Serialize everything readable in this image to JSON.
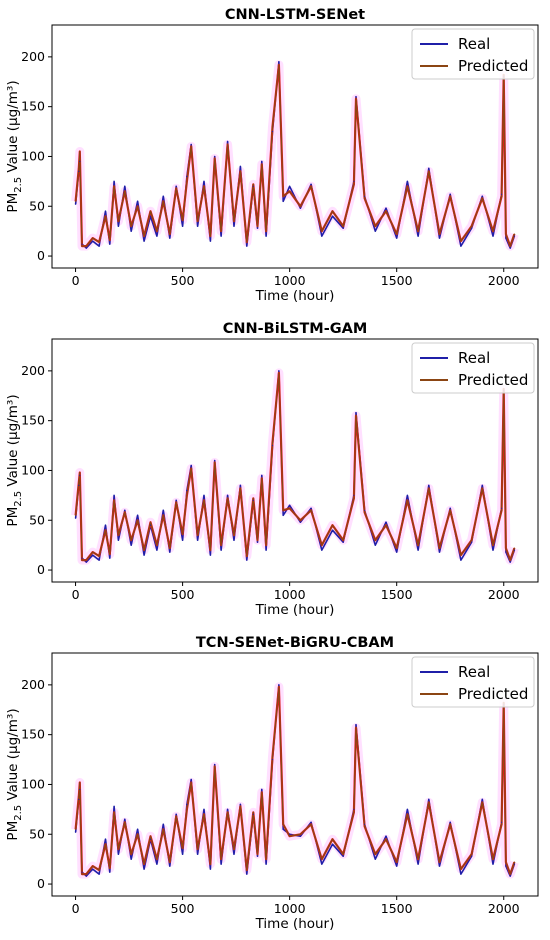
{
  "colors": {
    "real": "#1f1fa8",
    "predicted": "#8b4513",
    "error": "#e8191e",
    "halo": "#ff00ff"
  },
  "chart_data": [
    {
      "type": "line",
      "title": "CNN-LSTM-SENet",
      "xlabel": "Time (hour)",
      "ylabel": "PM2.5 Value (μg/m³)",
      "xlim": [
        -110,
        2160
      ],
      "ylim": [
        -12,
        232
      ],
      "xticks": [
        0,
        500,
        1000,
        1500,
        2000
      ],
      "yticks": [
        0,
        50,
        100,
        150,
        200
      ],
      "grid": false,
      "legend": "top-right",
      "series": [
        {
          "name": "Real",
          "x": [
            0,
            15,
            20,
            30,
            50,
            80,
            110,
            140,
            160,
            180,
            200,
            230,
            260,
            290,
            320,
            350,
            380,
            410,
            440,
            470,
            500,
            520,
            540,
            570,
            600,
            630,
            650,
            680,
            710,
            740,
            770,
            800,
            830,
            850,
            870,
            890,
            920,
            950,
            970,
            1000,
            1050,
            1100,
            1150,
            1200,
            1250,
            1300,
            1310,
            1350,
            1400,
            1450,
            1500,
            1550,
            1600,
            1650,
            1700,
            1750,
            1800,
            1850,
            1900,
            1950,
            1990,
            2000,
            2010,
            2030,
            2050
          ],
          "values": [
            52,
            85,
            95,
            12,
            8,
            15,
            10,
            45,
            12,
            75,
            30,
            70,
            25,
            55,
            15,
            40,
            20,
            60,
            18,
            70,
            30,
            80,
            112,
            30,
            75,
            15,
            100,
            20,
            115,
            30,
            90,
            10,
            70,
            28,
            95,
            20,
            125,
            195,
            55,
            70,
            48,
            72,
            20,
            40,
            28,
            75,
            160,
            60,
            25,
            48,
            18,
            75,
            20,
            88,
            18,
            62,
            10,
            28,
            60,
            20,
            62,
            180,
            18,
            8,
            20
          ]
        },
        {
          "name": "Predicted",
          "x": [
            0,
            15,
            20,
            30,
            50,
            80,
            110,
            140,
            160,
            180,
            200,
            230,
            260,
            290,
            320,
            350,
            380,
            410,
            440,
            470,
            500,
            520,
            540,
            570,
            600,
            630,
            650,
            680,
            710,
            740,
            770,
            800,
            830,
            850,
            870,
            890,
            920,
            950,
            970,
            1000,
            1050,
            1100,
            1150,
            1200,
            1250,
            1300,
            1310,
            1350,
            1400,
            1450,
            1500,
            1550,
            1600,
            1650,
            1700,
            1750,
            1800,
            1850,
            1900,
            1950,
            1990,
            2000,
            2010,
            2030,
            2050
          ],
          "values": [
            55,
            88,
            105,
            10,
            10,
            18,
            14,
            40,
            16,
            70,
            35,
            65,
            30,
            50,
            20,
            45,
            25,
            55,
            22,
            68,
            36,
            75,
            110,
            35,
            70,
            20,
            98,
            25,
            112,
            35,
            85,
            14,
            72,
            30,
            92,
            25,
            130,
            192,
            60,
            65,
            50,
            70,
            25,
            45,
            30,
            72,
            158,
            58,
            30,
            45,
            22,
            70,
            25,
            85,
            22,
            60,
            15,
            30,
            58,
            25,
            60,
            182,
            22,
            10,
            22
          ]
        }
      ]
    },
    {
      "type": "line",
      "title": "CNN-BiLSTM-GAM",
      "xlabel": "Time (hour)",
      "ylabel": "PM2.5 Value (μg/m³)",
      "xlim": [
        -110,
        2160
      ],
      "ylim": [
        -12,
        232
      ],
      "xticks": [
        0,
        500,
        1000,
        1500,
        2000
      ],
      "yticks": [
        0,
        50,
        100,
        150,
        200
      ],
      "grid": false,
      "legend": "top-right",
      "series": [
        {
          "name": "Real",
          "x": [
            0,
            15,
            20,
            30,
            50,
            80,
            110,
            140,
            160,
            180,
            200,
            230,
            260,
            290,
            320,
            350,
            380,
            410,
            440,
            470,
            500,
            520,
            540,
            570,
            600,
            630,
            650,
            680,
            710,
            740,
            770,
            800,
            830,
            850,
            870,
            890,
            920,
            950,
            970,
            1000,
            1050,
            1100,
            1150,
            1200,
            1250,
            1300,
            1310,
            1350,
            1400,
            1450,
            1500,
            1550,
            1600,
            1650,
            1700,
            1750,
            1800,
            1850,
            1900,
            1950,
            1990,
            2000,
            2010,
            2030,
            2050
          ],
          "values": [
            52,
            85,
            95,
            12,
            8,
            15,
            10,
            45,
            12,
            75,
            30,
            60,
            25,
            55,
            15,
            45,
            20,
            60,
            18,
            70,
            30,
            80,
            105,
            30,
            75,
            15,
            110,
            20,
            75,
            30,
            85,
            10,
            70,
            28,
            95,
            20,
            125,
            200,
            55,
            65,
            48,
            62,
            20,
            40,
            28,
            75,
            158,
            60,
            25,
            48,
            18,
            75,
            20,
            85,
            18,
            62,
            10,
            28,
            85,
            20,
            62,
            180,
            18,
            8,
            20
          ]
        },
        {
          "name": "Predicted",
          "x": [
            0,
            15,
            20,
            30,
            50,
            80,
            110,
            140,
            160,
            180,
            200,
            230,
            260,
            290,
            320,
            350,
            380,
            410,
            440,
            470,
            500,
            520,
            540,
            570,
            600,
            630,
            650,
            680,
            710,
            740,
            770,
            800,
            830,
            850,
            870,
            890,
            920,
            950,
            970,
            1000,
            1050,
            1100,
            1150,
            1200,
            1250,
            1300,
            1310,
            1350,
            1400,
            1450,
            1500,
            1550,
            1600,
            1650,
            1700,
            1750,
            1800,
            1850,
            1900,
            1950,
            1990,
            2000,
            2010,
            2030,
            2050
          ],
          "values": [
            55,
            88,
            98,
            10,
            10,
            18,
            14,
            40,
            16,
            70,
            35,
            58,
            30,
            50,
            20,
            48,
            25,
            55,
            22,
            68,
            36,
            75,
            102,
            35,
            70,
            20,
            108,
            25,
            72,
            35,
            82,
            14,
            72,
            30,
            92,
            25,
            128,
            198,
            60,
            62,
            50,
            60,
            25,
            45,
            30,
            72,
            155,
            58,
            30,
            45,
            22,
            70,
            25,
            82,
            22,
            60,
            15,
            30,
            82,
            25,
            60,
            182,
            22,
            10,
            22
          ]
        }
      ]
    },
    {
      "type": "line",
      "title": "TCN-SENet-BiGRU-CBAM",
      "xlabel": "Time (hour)",
      "ylabel": "PM2.5 Value (μg/m³)",
      "xlim": [
        -110,
        2160
      ],
      "ylim": [
        -12,
        232
      ],
      "xticks": [
        0,
        500,
        1000,
        1500,
        2000
      ],
      "yticks": [
        0,
        50,
        100,
        150,
        200
      ],
      "grid": false,
      "legend": "top-right",
      "series": [
        {
          "name": "Real",
          "x": [
            0,
            15,
            20,
            30,
            50,
            80,
            110,
            140,
            160,
            180,
            200,
            230,
            260,
            290,
            320,
            350,
            380,
            410,
            440,
            470,
            500,
            520,
            540,
            570,
            600,
            630,
            650,
            680,
            710,
            740,
            770,
            800,
            830,
            850,
            870,
            890,
            920,
            950,
            970,
            1000,
            1050,
            1100,
            1150,
            1200,
            1250,
            1300,
            1310,
            1350,
            1400,
            1450,
            1500,
            1550,
            1600,
            1650,
            1700,
            1750,
            1800,
            1850,
            1900,
            1950,
            1990,
            2000,
            2010,
            2030,
            2050
          ],
          "values": [
            52,
            85,
            95,
            12,
            8,
            15,
            10,
            45,
            12,
            78,
            30,
            65,
            25,
            55,
            15,
            45,
            20,
            60,
            18,
            70,
            30,
            80,
            105,
            30,
            75,
            15,
            120,
            20,
            75,
            30,
            80,
            10,
            70,
            28,
            95,
            20,
            125,
            200,
            55,
            50,
            48,
            62,
            20,
            40,
            28,
            75,
            160,
            60,
            25,
            48,
            18,
            75,
            20,
            85,
            18,
            62,
            10,
            28,
            85,
            20,
            62,
            180,
            18,
            8,
            20
          ]
        },
        {
          "name": "Predicted",
          "x": [
            0,
            15,
            20,
            30,
            50,
            80,
            110,
            140,
            160,
            180,
            200,
            230,
            260,
            290,
            320,
            350,
            380,
            410,
            440,
            470,
            500,
            520,
            540,
            570,
            600,
            630,
            650,
            680,
            710,
            740,
            770,
            800,
            830,
            850,
            870,
            890,
            920,
            950,
            970,
            1000,
            1050,
            1100,
            1150,
            1200,
            1250,
            1300,
            1310,
            1350,
            1400,
            1450,
            1500,
            1550,
            1600,
            1650,
            1700,
            1750,
            1800,
            1850,
            1900,
            1950,
            1990,
            2000,
            2010,
            2030,
            2050
          ],
          "values": [
            55,
            88,
            102,
            10,
            10,
            18,
            14,
            40,
            16,
            72,
            35,
            62,
            30,
            50,
            20,
            48,
            25,
            55,
            22,
            68,
            36,
            75,
            102,
            35,
            70,
            20,
            118,
            25,
            72,
            35,
            78,
            14,
            72,
            30,
            92,
            25,
            128,
            198,
            60,
            48,
            50,
            60,
            25,
            45,
            30,
            72,
            157,
            58,
            30,
            45,
            22,
            70,
            25,
            82,
            22,
            60,
            15,
            30,
            82,
            25,
            60,
            182,
            22,
            10,
            22
          ]
        }
      ]
    }
  ]
}
